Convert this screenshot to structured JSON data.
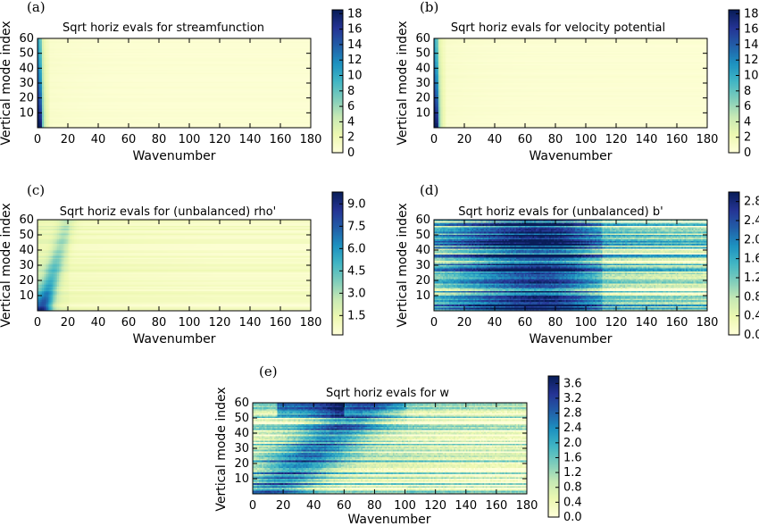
{
  "colors": {
    "colormap": [
      "#ffffd9",
      "#edf8b1",
      "#c7e9b4",
      "#7fcdbb",
      "#41b6c4",
      "#1d91c0",
      "#225ea8",
      "#253494",
      "#081d58"
    ]
  },
  "chart_data": [
    {
      "type": "heatmap",
      "panel_label": "(a)",
      "title": "Sqrt horiz evals for streamfunction",
      "xlabel": "Wavenumber",
      "ylabel": "Vertical mode index",
      "xlim": [
        0,
        180
      ],
      "ylim": [
        0,
        60
      ],
      "x_ticks": [
        "0",
        "20",
        "40",
        "60",
        "80",
        "100",
        "120",
        "140",
        "160",
        "180"
      ],
      "y_ticks": [
        "10",
        "20",
        "30",
        "40",
        "50",
        "60"
      ],
      "clim": [
        0,
        18.5
      ],
      "colorbar_ticks": [
        "0",
        "2",
        "4",
        "6",
        "8",
        "10",
        "12",
        "14",
        "16",
        "18"
      ],
      "pattern": "streamfunction"
    },
    {
      "type": "heatmap",
      "panel_label": "(b)",
      "title": "Sqrt horiz evals for velocity potential",
      "xlabel": "Wavenumber",
      "ylabel": "Vertical mode index",
      "xlim": [
        0,
        180
      ],
      "ylim": [
        0,
        60
      ],
      "x_ticks": [
        "0",
        "20",
        "40",
        "60",
        "80",
        "100",
        "120",
        "140",
        "160",
        "180"
      ],
      "y_ticks": [
        "10",
        "20",
        "30",
        "40",
        "50",
        "60"
      ],
      "clim": [
        0,
        18.5
      ],
      "colorbar_ticks": [
        "0",
        "2",
        "4",
        "6",
        "8",
        "10",
        "12",
        "14",
        "16",
        "18"
      ],
      "pattern": "potential"
    },
    {
      "type": "heatmap",
      "panel_label": "(c)",
      "title": "Sqrt horiz evals for (unbalanced) rho'",
      "xlabel": "Wavenumber",
      "ylabel": "Vertical mode index",
      "xlim": [
        0,
        180
      ],
      "ylim": [
        0,
        60
      ],
      "x_ticks": [
        "0",
        "20",
        "40",
        "60",
        "80",
        "100",
        "120",
        "140",
        "160",
        "180"
      ],
      "y_ticks": [
        "10",
        "20",
        "30",
        "40",
        "50",
        "60"
      ],
      "clim": [
        0.2,
        9.8
      ],
      "colorbar_ticks": [
        "1.5",
        "3.0",
        "4.5",
        "6.0",
        "7.5",
        "9.0"
      ],
      "pattern": "rho"
    },
    {
      "type": "heatmap",
      "panel_label": "(d)",
      "title": "Sqrt horiz evals for (unbalanced) b'",
      "xlabel": "Wavenumber",
      "ylabel": "Vertical mode index",
      "xlim": [
        0,
        180
      ],
      "ylim": [
        0,
        60
      ],
      "x_ticks": [
        "0",
        "20",
        "40",
        "60",
        "80",
        "100",
        "120",
        "140",
        "160",
        "180"
      ],
      "y_ticks": [
        "10",
        "20",
        "30",
        "40",
        "50",
        "60"
      ],
      "clim": [
        0,
        3.0
      ],
      "colorbar_ticks": [
        "0.0",
        "0.4",
        "0.8",
        "1.2",
        "1.6",
        "2.0",
        "2.4",
        "2.8"
      ],
      "pattern": "buoyancy"
    },
    {
      "type": "heatmap",
      "panel_label": "(e)",
      "title": "Sqrt horiz evals for w",
      "xlabel": "Wavenumber",
      "ylabel": "Vertical mode index",
      "xlim": [
        0,
        180
      ],
      "ylim": [
        0,
        60
      ],
      "x_ticks": [
        "0",
        "20",
        "40",
        "60",
        "80",
        "100",
        "120",
        "140",
        "160",
        "180"
      ],
      "y_ticks": [
        "10",
        "20",
        "30",
        "40",
        "50",
        "60"
      ],
      "clim": [
        0,
        3.8
      ],
      "colorbar_ticks": [
        "0.0",
        "0.4",
        "0.8",
        "1.2",
        "1.6",
        "2.0",
        "2.4",
        "2.8",
        "3.2",
        "3.6"
      ],
      "pattern": "w"
    }
  ]
}
